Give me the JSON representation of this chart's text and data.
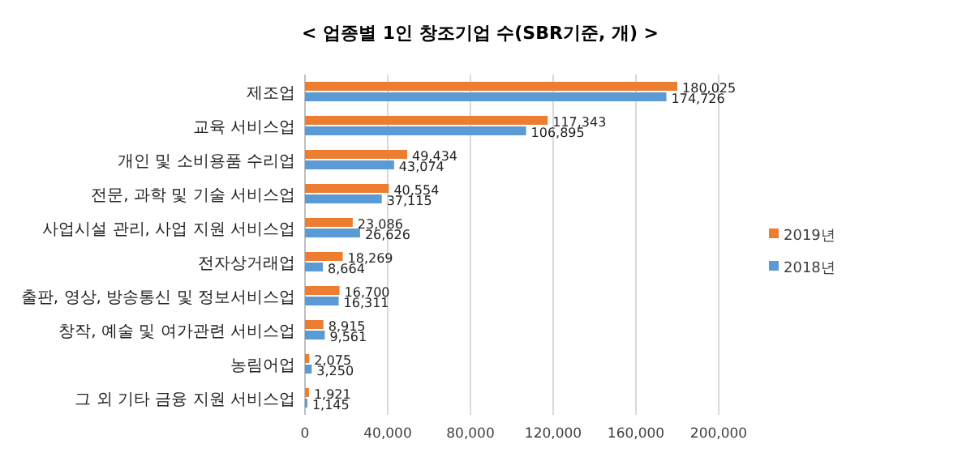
{
  "chart_data": {
    "type": "bar",
    "orientation": "horizontal",
    "title": "< 업종별 1인 창조기업 수(SBR기준, 개) >",
    "categories": [
      "제조업",
      "교육 서비스업",
      "개인 및 소비용품 수리업",
      "전문, 과학 및 기술 서비스업",
      "사업시설 관리, 사업 지원 서비스업",
      "전자상거래업",
      "출판, 영상, 방송통신 및 정보서비스업",
      "창작, 예술 및 여가관련 서비스업",
      "농림어업",
      "그 외 기타 금융 지원 서비스업"
    ],
    "series": [
      {
        "name": "2019년",
        "color": "#ed7d31",
        "values": [
          180025,
          117343,
          49434,
          40554,
          23086,
          18269,
          16700,
          8915,
          2075,
          1921
        ],
        "value_labels": [
          "180,025",
          "117,343",
          "49,434",
          "40,554",
          "23,086",
          "18,269",
          "16,700",
          "8,915",
          "2,075",
          "1,921"
        ]
      },
      {
        "name": "2018년",
        "color": "#5b9bd5",
        "values": [
          174726,
          106895,
          43074,
          37115,
          26626,
          8664,
          16311,
          9561,
          3250,
          1145
        ],
        "value_labels": [
          "174,726",
          "106,895",
          "43,074",
          "37,115",
          "26,626",
          "8,664",
          "16,311",
          "9,561",
          "3,250",
          "1,145"
        ]
      }
    ],
    "xlim": [
      0,
      200000
    ],
    "xticks": [
      0,
      {
        "value": 40000,
        "label": "40,000"
      },
      {
        "value": 80000,
        "label": "80,000"
      },
      {
        "value": 120000,
        "label": "120,000"
      },
      {
        "value": 160000,
        "label": "160,000"
      },
      {
        "value": 200000,
        "label": "200,000"
      }
    ],
    "grid": "x",
    "legend": "right"
  }
}
